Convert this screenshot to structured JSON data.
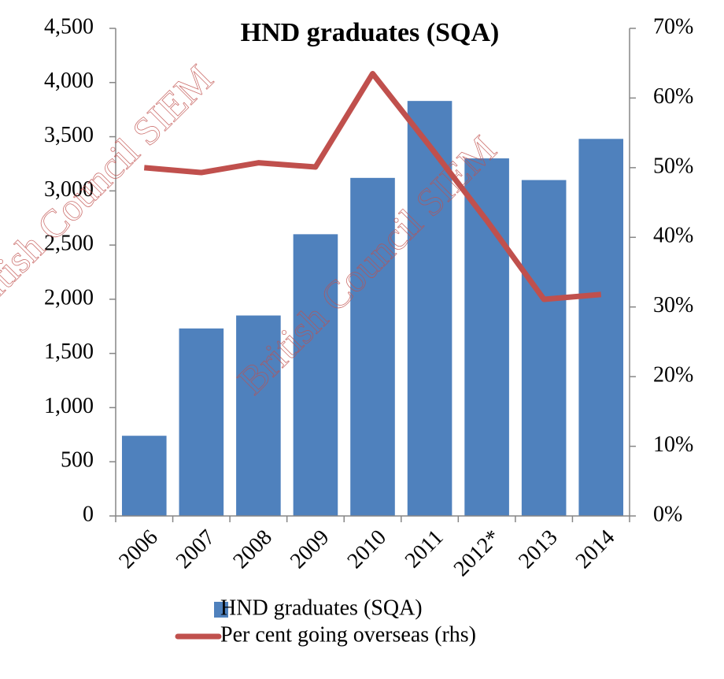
{
  "chart_data": {
    "type": "bar-line",
    "title": "HND graduates (SQA)",
    "watermark": "British Council SIEM",
    "categories": [
      "2006",
      "2007",
      "2008",
      "2009",
      "2010",
      "2011",
      "2012*",
      "2013",
      "2014"
    ],
    "series": [
      {
        "name": "HND graduates (SQA)",
        "type": "bar",
        "color": "#4f81bd",
        "values": [
          740,
          1730,
          1850,
          2600,
          3120,
          3830,
          3300,
          3100,
          3480
        ]
      },
      {
        "name": "Per cent going overseas (rhs)",
        "type": "line",
        "axis": "y2",
        "color": "#c0504d",
        "values": [
          50,
          49.3,
          50.7,
          50.1,
          63.5,
          53.1,
          42.4,
          31.1,
          31.8
        ]
      }
    ],
    "ylim": [
      0,
      4500
    ],
    "yticks": [
      0,
      500,
      {
        "value": 1000,
        "label": "1,000"
      },
      {
        "value": 1500,
        "label": "1,500"
      },
      {
        "value": 2000,
        "label": "2,000"
      },
      {
        "value": 2500,
        "label": "2,500"
      },
      {
        "value": 3000,
        "label": "3,000"
      },
      {
        "value": 3500,
        "label": "3,500"
      },
      {
        "value": 4000,
        "label": "4,000"
      },
      {
        "value": 4500,
        "label": "4,500"
      }
    ],
    "y2lim": [
      0,
      70
    ],
    "y2ticks": [
      {
        "value": 0,
        "label": "0%"
      },
      {
        "value": 10,
        "label": "10%"
      },
      {
        "value": 20,
        "label": "20%"
      },
      {
        "value": 30,
        "label": "30%"
      },
      {
        "value": 40,
        "label": "40%"
      },
      {
        "value": 50,
        "label": "50%"
      },
      {
        "value": 60,
        "label": "60%"
      },
      {
        "value": 70,
        "label": "70%"
      }
    ],
    "legend": "bottom"
  }
}
